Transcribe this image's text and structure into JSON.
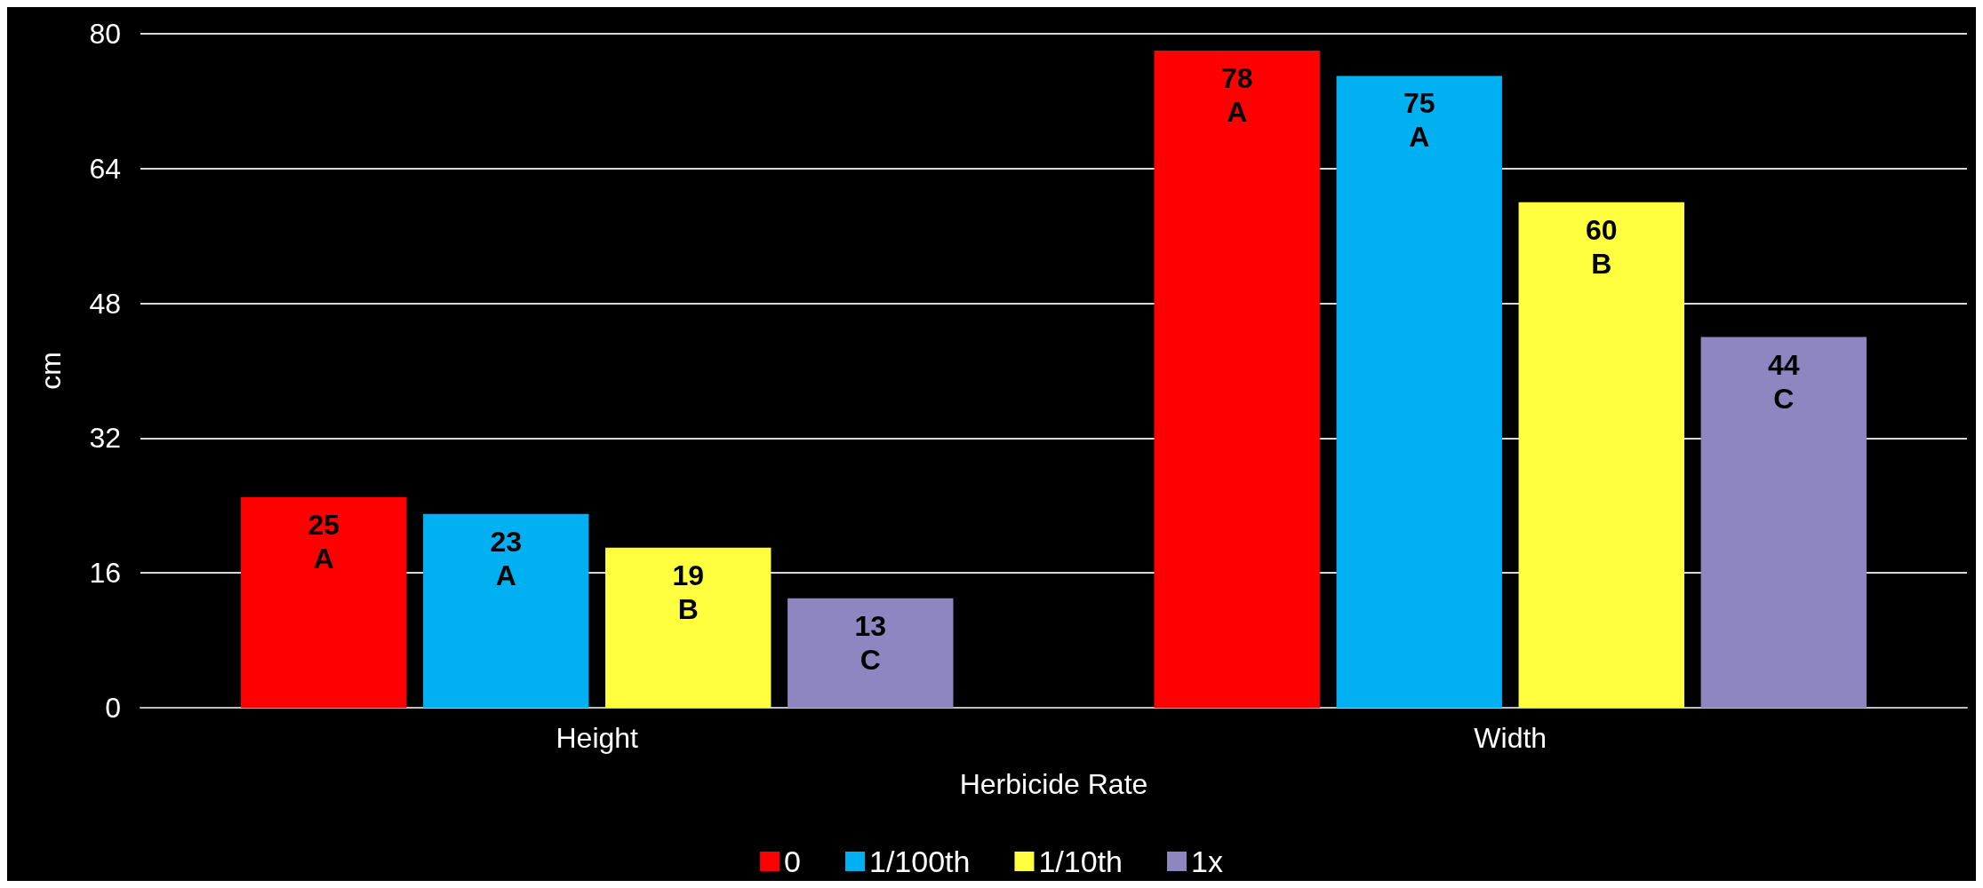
{
  "chart_data": {
    "type": "bar",
    "xlabel": "Herbicide Rate",
    "ylabel": "cm",
    "categories": [
      "Height",
      "Width"
    ],
    "series": [
      {
        "name": "0",
        "color": "#ff0000",
        "values": [
          25,
          78
        ],
        "value_labels": [
          "25\nA",
          "78\nA"
        ]
      },
      {
        "name": "1/100th",
        "color": "#00b0f0",
        "values": [
          23,
          75
        ],
        "value_labels": [
          "23\nA",
          "75\nA"
        ]
      },
      {
        "name": "1/10th",
        "color": "#ffff40",
        "values": [
          19,
          60
        ],
        "value_labels": [
          "19\nB",
          "60\nB"
        ]
      },
      {
        "name": "1x",
        "color": "#8e86c0",
        "values": [
          13,
          44
        ],
        "value_labels": [
          "13\nC",
          "44\nC"
        ]
      }
    ],
    "ylim": [
      0,
      80
    ],
    "yticks": [
      0,
      16,
      32,
      48,
      64,
      80
    ],
    "grid": "y",
    "legend": "bottom"
  }
}
